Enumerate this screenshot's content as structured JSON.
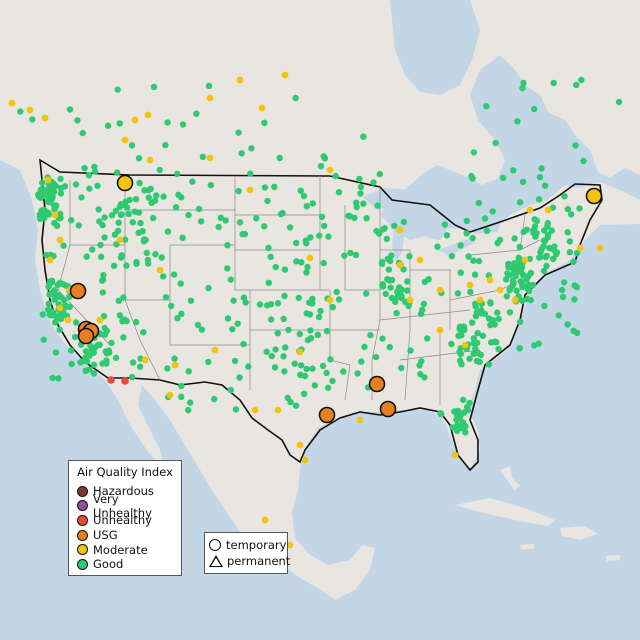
{
  "colors": {
    "water": "#c3d6e6",
    "land": "#eae6e1",
    "us_land": "#ededec",
    "Hazardous": "#7b3b2f",
    "Very Unhealthy": "#8e4fa3",
    "Unhealthy": "#e64b3a",
    "USG": "#e8801f",
    "Moderate": "#f2c40f",
    "Good": "#2ec971"
  },
  "legend": {
    "title": "Air Quality Index",
    "categories": [
      {
        "label": "Hazardous",
        "color": "#7b3b2f"
      },
      {
        "label": "Very Unhealthy",
        "color": "#8e4fa3"
      },
      {
        "label": "Unhealthy",
        "color": "#e64b3a"
      },
      {
        "label": "USG",
        "color": "#e8801f"
      },
      {
        "label": "Moderate",
        "color": "#f2c40f"
      },
      {
        "label": "Good",
        "color": "#2ec971"
      }
    ]
  },
  "type_legend": {
    "temporary": "temporary",
    "permanent": "permanent"
  }
}
